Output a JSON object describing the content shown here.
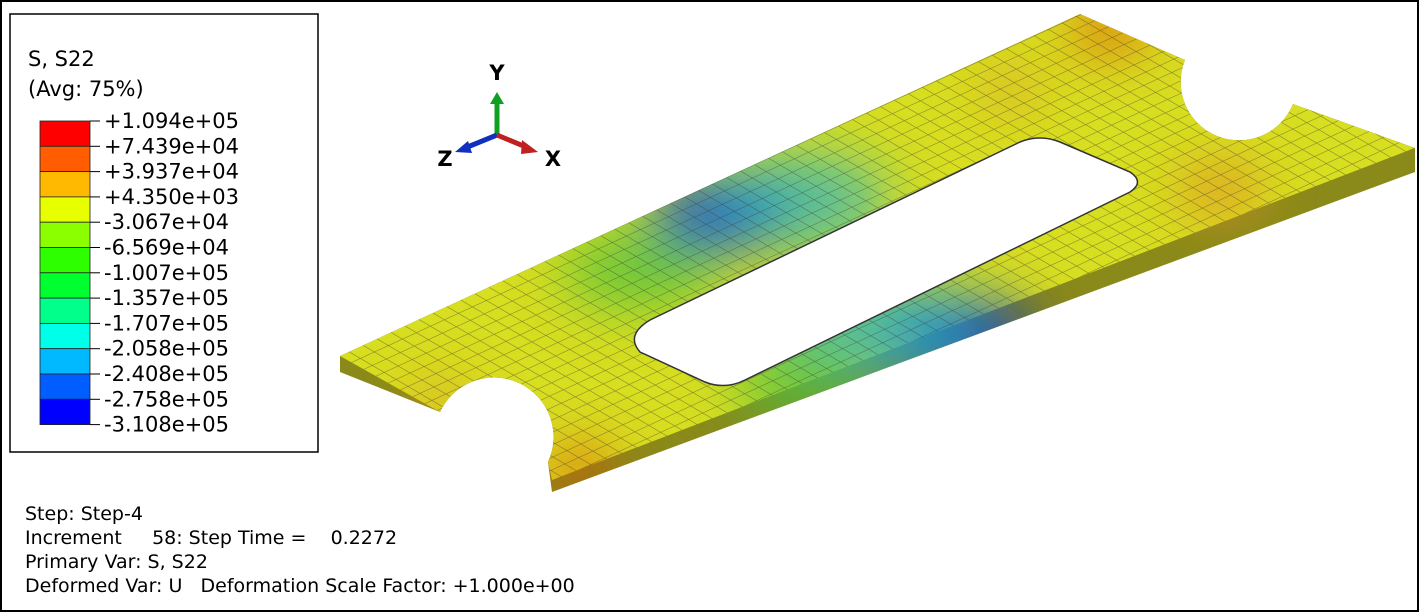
{
  "legend": {
    "title": "S, S22",
    "subtitle": "(Avg: 75%)",
    "labels": [
      "+1.094e+05",
      "+7.439e+04",
      "+3.937e+04",
      "+4.350e+03",
      "-3.067e+04",
      "-6.569e+04",
      "-1.007e+05",
      "-1.357e+05",
      "-1.707e+05",
      "-2.058e+05",
      "-2.408e+05",
      "-2.758e+05",
      "-3.108e+05"
    ],
    "colors": [
      "#ff0000",
      "#ff5d00",
      "#ffb900",
      "#e8ff00",
      "#8bff00",
      "#2eff00",
      "#00ff2e",
      "#00ff8b",
      "#00ffe8",
      "#00b9ff",
      "#005dff",
      "#0000ff"
    ]
  },
  "triad": {
    "y": "Y",
    "z": "Z",
    "x": "X"
  },
  "status": {
    "step": "Step: Step-4",
    "increment": "Increment     58: Step Time =    0.2272",
    "primary": "Primary Var: S, S22",
    "deformed": "Deformed Var: U   Deformation Scale Factor: +1.000e+00"
  }
}
